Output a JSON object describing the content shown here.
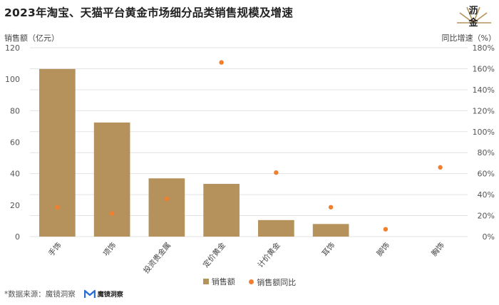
{
  "title": "2023年淘宝、天猫平台黄金市场细分品类销售规模及增速",
  "logo": {
    "line1": "沥",
    "line2": "金"
  },
  "source": {
    "text": "*数据来源：魔镜洞察",
    "logo_text": "魔镜洞察"
  },
  "colors": {
    "bar": "#b5915c",
    "dot": "#f07f2e",
    "grid": "#e3e3e3"
  },
  "chart_data": {
    "type": "bar",
    "categories": [
      "手饰",
      "项饰",
      "投资贵金属",
      "定价黄金",
      "计价黄金",
      "耳饰",
      "脚饰",
      "胸饰"
    ],
    "series": [
      {
        "name": "销售额",
        "type": "bar",
        "axis": "left",
        "values": [
          106.5,
          72.5,
          37,
          33.5,
          10.5,
          8,
          0,
          0
        ]
      },
      {
        "name": "销售额同比",
        "type": "scatter",
        "axis": "right",
        "values": [
          28,
          22,
          36,
          166,
          61,
          28,
          7,
          66
        ]
      }
    ],
    "ylabel": "销售额（亿元）",
    "y2label": "同比增速（%）",
    "ylim": [
      0,
      120
    ],
    "y2lim": [
      0,
      180
    ],
    "yticks": [
      "0",
      "20",
      "40",
      "60",
      "80",
      "100",
      "120"
    ],
    "y2ticks": [
      "0%",
      "20%",
      "40%",
      "60%",
      "80%",
      "100%",
      "120%",
      "140%",
      "160%",
      "180%"
    ],
    "grid": true,
    "legend_position": "bottom"
  }
}
